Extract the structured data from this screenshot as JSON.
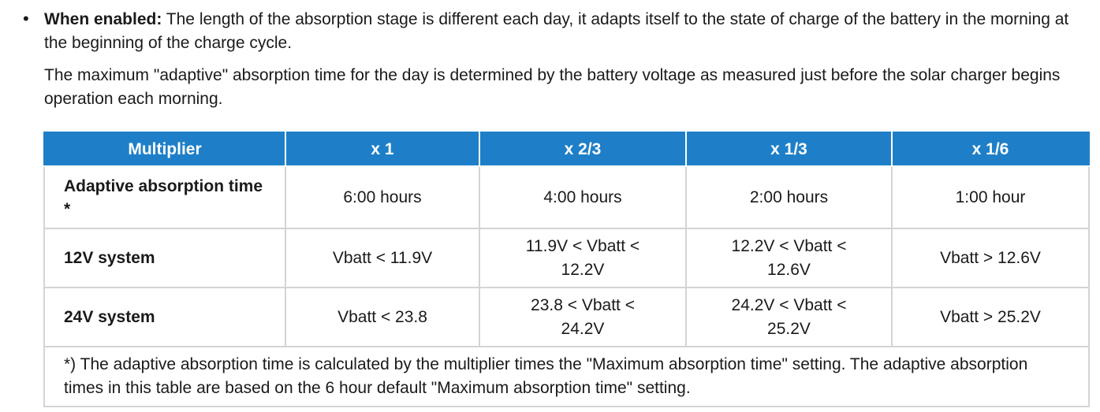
{
  "bullet": {
    "marker": "•",
    "lead": "When enabled:",
    "text": " The length of the absorption stage is different each day, it adapts itself to the state of charge of the battery in the morning at the beginning of the charge cycle.",
    "paragraph2": "The maximum \"adaptive\" absorption time for the day is determined by the battery voltage as measured just before the solar charger begins operation each morning."
  },
  "table": {
    "header": [
      "Multiplier",
      "x 1",
      "x 2/3",
      "x 1/3",
      "x 1/6"
    ],
    "rows": [
      {
        "label": "Adaptive absorption time *",
        "cells": [
          "6:00 hours",
          "4:00 hours",
          "2:00 hours",
          "1:00 hour"
        ]
      },
      {
        "label": "12V system",
        "cells": [
          "Vbatt < 11.9V",
          "11.9V < Vbatt < 12.2V",
          "12.2V < Vbatt < 12.6V",
          "Vbatt > 12.6V"
        ]
      },
      {
        "label": "24V system",
        "cells": [
          "Vbatt < 23.8",
          "23.8 < Vbatt < 24.2V",
          "24.2V < Vbatt < 25.2V",
          "Vbatt > 25.2V"
        ]
      }
    ],
    "footnote": "*) The adaptive absorption time is calculated by the multiplier times the \"Maximum absorption time\" setting. The adaptive absorption times in this table are based on the 6 hour default \"Maximum absorption time\" setting."
  },
  "colors": {
    "header_bg": "#1e7fc8",
    "header_text": "#ffffff",
    "grid": "#d4d4d4"
  }
}
